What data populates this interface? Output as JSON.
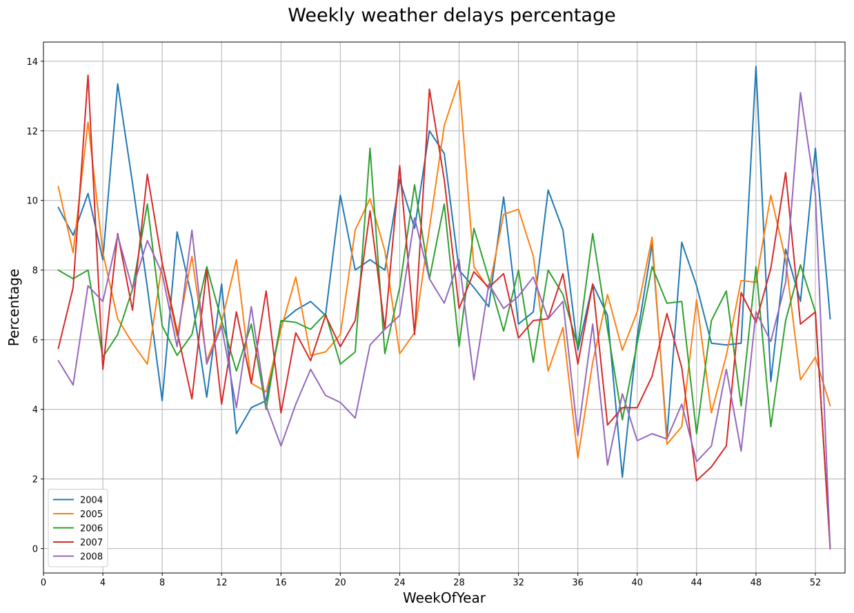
{
  "chart_data": {
    "type": "line",
    "title": "Weekly weather delays percentage",
    "xlabel": "WeekOfYear",
    "ylabel": "Percentage",
    "xlim": [
      0,
      54
    ],
    "ylim": [
      -0.7,
      14.55
    ],
    "xticks": [
      0,
      4,
      8,
      12,
      16,
      20,
      24,
      28,
      32,
      36,
      40,
      44,
      48,
      52
    ],
    "yticks": [
      0,
      2,
      4,
      6,
      8,
      10,
      12,
      14
    ],
    "grid": true,
    "legend_position": "lower-left",
    "x": [
      1,
      2,
      3,
      4,
      5,
      6,
      7,
      8,
      9,
      10,
      11,
      12,
      13,
      14,
      15,
      16,
      17,
      18,
      19,
      20,
      21,
      22,
      23,
      24,
      25,
      26,
      27,
      28,
      29,
      30,
      31,
      32,
      33,
      34,
      35,
      36,
      37,
      38,
      39,
      40,
      41,
      42,
      43,
      44,
      45,
      46,
      47,
      48,
      49,
      50,
      51,
      52,
      53
    ],
    "series": [
      {
        "name": "2004",
        "color": "#1f77b4",
        "values": [
          9.8,
          9.0,
          10.2,
          8.3,
          13.35,
          10.5,
          7.5,
          4.25,
          9.1,
          7.2,
          4.35,
          7.6,
          3.3,
          4.05,
          4.25,
          6.5,
          6.85,
          7.1,
          6.7,
          10.15,
          8.0,
          8.3,
          8.0,
          10.6,
          9.2,
          12.0,
          11.35,
          8.0,
          7.5,
          6.95,
          10.1,
          6.45,
          6.8,
          10.3,
          9.15,
          5.7,
          7.6,
          6.7,
          2.05,
          6.1,
          8.75,
          3.2,
          8.8,
          7.55,
          5.9,
          5.85,
          5.9,
          13.85,
          4.8,
          8.6,
          7.1,
          11.5,
          6.6
        ]
      },
      {
        "name": "2005",
        "color": "#ff7f0e",
        "values": [
          10.4,
          8.5,
          12.25,
          8.5,
          6.6,
          5.9,
          5.3,
          8.2,
          6.1,
          8.4,
          5.4,
          6.5,
          8.3,
          4.75,
          4.5,
          6.3,
          7.8,
          5.55,
          5.65,
          6.15,
          9.15,
          10.05,
          8.55,
          5.6,
          6.2,
          9.2,
          12.15,
          13.45,
          8.1,
          7.45,
          9.6,
          9.75,
          8.4,
          5.1,
          6.35,
          2.6,
          5.35,
          7.3,
          5.7,
          6.8,
          8.95,
          3.0,
          3.5,
          7.15,
          3.9,
          5.55,
          7.7,
          7.65,
          10.15,
          8.3,
          4.85,
          5.5,
          4.1
        ]
      },
      {
        "name": "2006",
        "color": "#2ca02c",
        "values": [
          8.0,
          7.75,
          8.0,
          5.5,
          6.15,
          7.45,
          9.9,
          6.4,
          5.55,
          6.15,
          8.1,
          6.55,
          5.1,
          6.45,
          4.0,
          6.55,
          6.5,
          6.3,
          6.75,
          5.3,
          5.65,
          11.5,
          5.6,
          7.5,
          10.45,
          7.75,
          9.9,
          5.8,
          9.2,
          7.75,
          6.25,
          8.0,
          5.35,
          8.0,
          7.3,
          5.8,
          9.05,
          6.3,
          3.7,
          5.9,
          8.1,
          7.05,
          7.1,
          3.3,
          6.55,
          7.4,
          4.1,
          8.1,
          3.5,
          6.55,
          8.15,
          6.8,
          0.0
        ]
      },
      {
        "name": "2007",
        "color": "#d62728",
        "values": [
          5.75,
          7.5,
          13.6,
          5.15,
          9.05,
          6.85,
          10.75,
          8.2,
          6.25,
          4.3,
          8.0,
          4.15,
          6.8,
          4.75,
          7.4,
          3.9,
          6.2,
          5.4,
          6.7,
          5.8,
          6.55,
          9.7,
          6.3,
          11.0,
          6.15,
          13.2,
          10.6,
          6.9,
          7.95,
          7.5,
          7.9,
          6.05,
          6.55,
          6.6,
          7.9,
          5.3,
          7.6,
          3.55,
          4.05,
          4.05,
          4.95,
          6.75,
          5.2,
          1.95,
          2.35,
          2.95,
          7.35,
          6.5,
          8.05,
          10.8,
          6.45,
          6.8,
          0.0
        ]
      },
      {
        "name": "2008",
        "color": "#9467bd",
        "values": [
          5.4,
          4.7,
          7.55,
          7.1,
          9.0,
          7.45,
          8.85,
          7.9,
          5.8,
          9.15,
          5.3,
          6.4,
          4.05,
          6.95,
          4.1,
          2.95,
          4.15,
          5.15,
          4.4,
          4.2,
          3.75,
          5.85,
          6.3,
          6.7,
          9.5,
          7.75,
          7.05,
          8.3,
          4.85,
          7.6,
          6.9,
          7.25,
          7.8,
          6.6,
          7.1,
          3.25,
          6.45,
          2.4,
          4.45,
          3.1,
          3.3,
          3.15,
          4.15,
          2.5,
          2.95,
          5.15,
          2.8,
          6.8,
          5.95,
          7.65,
          13.1,
          10.2,
          0.0
        ]
      }
    ]
  }
}
